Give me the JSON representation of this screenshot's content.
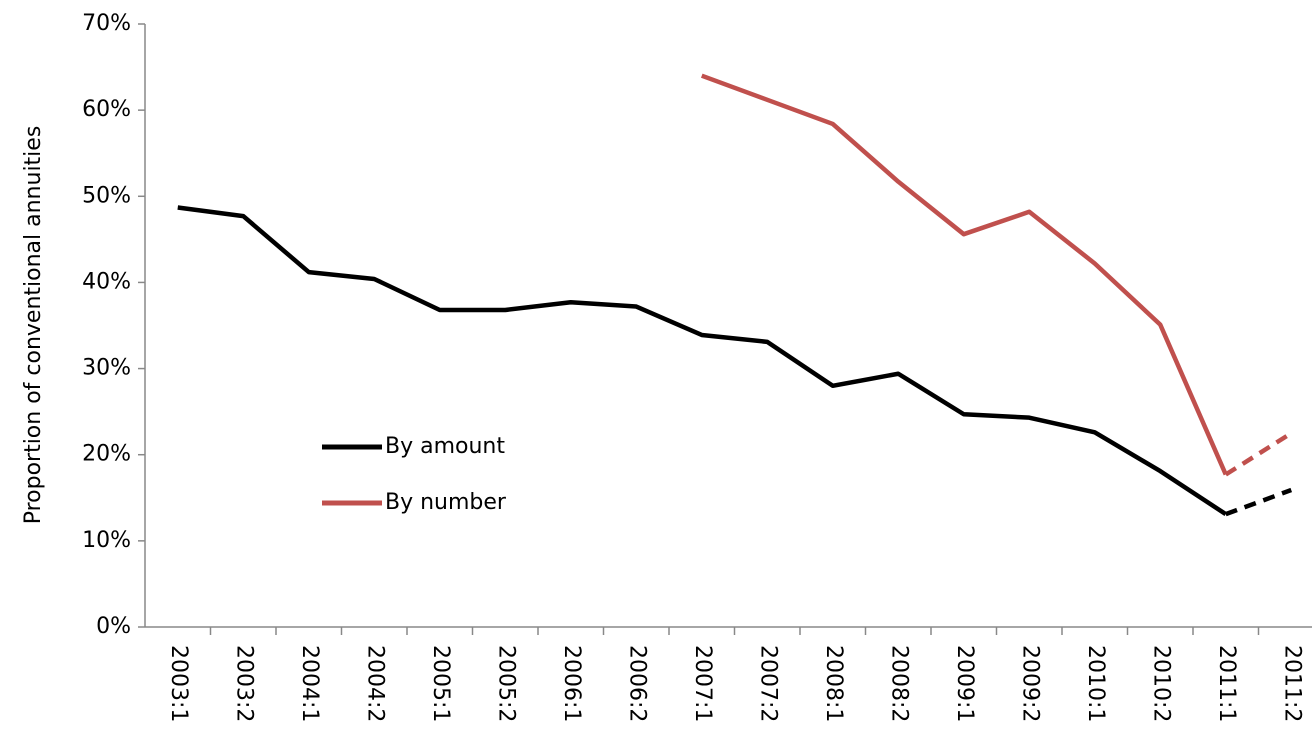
{
  "chart_data": {
    "type": "line",
    "y_label": "Proportion of conventional annuities",
    "categories": [
      "2003:1",
      "2003:2",
      "2004:1",
      "2004:2",
      "2005:1",
      "2005:2",
      "2006:1",
      "2006:2",
      "2007:1",
      "2007:2",
      "2008:1",
      "2008:2",
      "2009:1",
      "2009:2",
      "2010:1",
      "2010:2",
      "2011:1",
      "2011:2"
    ],
    "series": [
      {
        "name": "By amount",
        "color": "#000000",
        "values": [
          48.7,
          47.7,
          41.2,
          40.4,
          36.8,
          36.8,
          37.7,
          37.2,
          33.9,
          33.1,
          28.0,
          29.4,
          24.7,
          24.3,
          22.6,
          18.1,
          13.1,
          15.9
        ]
      },
      {
        "name": "By number",
        "color": "#c0504d",
        "values": [
          null,
          null,
          null,
          null,
          null,
          null,
          null,
          null,
          64.0,
          61.2,
          58.4,
          51.7,
          45.6,
          48.2,
          42.2,
          35.1,
          17.7,
          22.5
        ]
      }
    ],
    "dashed_segments": [
      16
    ],
    "ylim": [
      0,
      70
    ],
    "yticks": [
      {
        "value": 0,
        "label": "0%"
      },
      {
        "value": 10,
        "label": "10%"
      },
      {
        "value": 20,
        "label": "20%"
      },
      {
        "value": 30,
        "label": "30%"
      },
      {
        "value": 40,
        "label": "40%"
      },
      {
        "value": 50,
        "label": "50%"
      },
      {
        "value": 60,
        "label": "60%"
      },
      {
        "value": 70,
        "label": "70%"
      }
    ],
    "grid": false
  }
}
